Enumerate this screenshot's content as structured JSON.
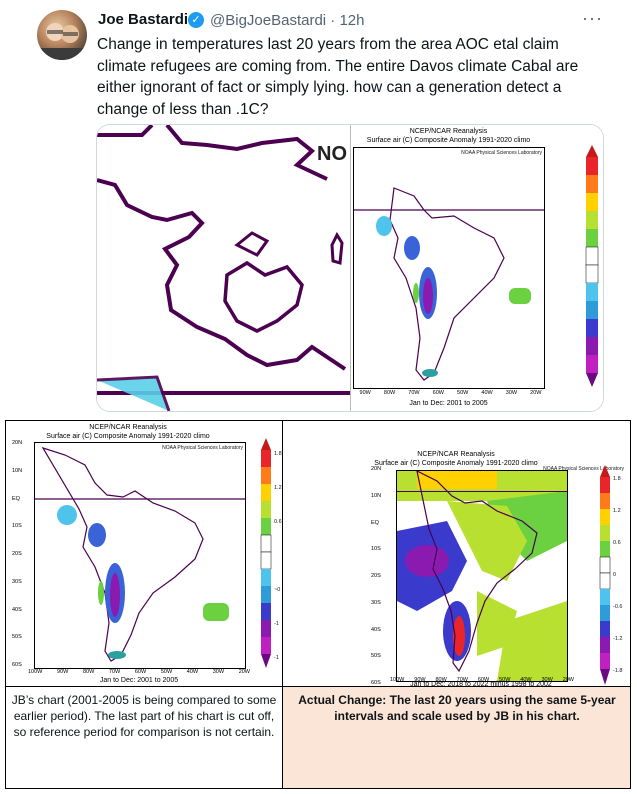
{
  "tweet": {
    "display_name": "Joe Bastardi",
    "verified_icon": "verified-badge-icon",
    "handle": "@BigJoeBastardi",
    "time": "· 12h",
    "more_icon": "more-icon",
    "text": "Change in temperatures last 20 years from the area AOC etal claim climate refugees are coming from.   The entire Davos climate Cabal are either ignorant of fact or simply lying.  how can a generation detect a change of less than .1C?"
  },
  "card": {
    "crop_label": "NO",
    "map": {
      "title1": "NCEP/NCAR Reanalysis",
      "title2": "Surface air (C) Composite Anomaly 1991-2020 climo",
      "subtitle": "NOAA Physical Sciences Laboratory",
      "x_ticks": [
        "90W",
        "80W",
        "70W",
        "60W",
        "50W",
        "40W",
        "30W",
        "20W"
      ],
      "footer": "Jan to Dec: 2001 to 2005"
    }
  },
  "left_map": {
    "title1": "NCEP/NCAR Reanalysis",
    "title2": "Surface air (C) Composite Anomaly 1991-2020 climo",
    "subtitle": "NOAA Physical Sciences Laboratory",
    "y_ticks": [
      "20N",
      "10N",
      "EQ",
      "10S",
      "20S",
      "30S",
      "40S",
      "50S",
      "60S"
    ],
    "x_ticks": [
      "100W",
      "90W",
      "80W",
      "70W",
      "60W",
      "50W",
      "40W",
      "30W",
      "20W"
    ],
    "footer": "Jan to Dec: 2001 to 2005",
    "scale_labels": [
      "1.8",
      "1.2",
      "0.6",
      "~0",
      "-1",
      "-1"
    ]
  },
  "right_map": {
    "title1": "NCEP/NCAR Reanalysis",
    "title2": "Surface air (C) Composite Anomaly 1991-2020 climo",
    "subtitle": "NOAA Physical Sciences Laboratory",
    "y_ticks": [
      "20N",
      "10N",
      "EQ",
      "10S",
      "20S",
      "30S",
      "40S",
      "50S",
      "60S"
    ],
    "x_ticks": [
      "100W",
      "90W",
      "80W",
      "70W",
      "60W",
      "50W",
      "40W",
      "30W",
      "20W"
    ],
    "footer": "Jan to Dec: 2018 to 2022 minus 1998 to 2002",
    "scale_labels": [
      "1.8",
      "1.2",
      "0.6",
      "0",
      "-0.6",
      "-1.2",
      "-1.8"
    ]
  },
  "captions": {
    "left": "JB’s chart (2001-2005 is being compared to some earlier period). The last part of his chart is cut off, so reference period for comparison is not certain.",
    "right": "Actual Change: The last 20 years using the same 5-year intervals and scale used by JB in his chart."
  },
  "colors": {
    "caption_right_bg": "#fbe5d6",
    "verified": "#1d9bf0",
    "coast": "#4b0050"
  }
}
